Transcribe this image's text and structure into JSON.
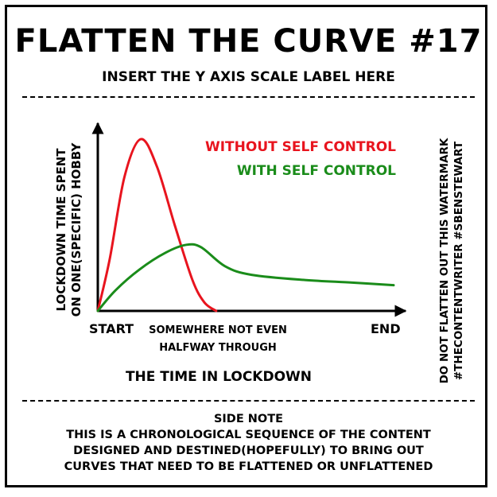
{
  "header": {
    "title": "FLATTEN THE CURVE #17",
    "subtitle": "INSERT THE Y AXIS SCALE LABEL HERE"
  },
  "watermark": {
    "line1": "DO NOT FLATTEN OUT THIS WATERMARK",
    "line2": "#THECONTENTWRITER #SBENSTEWART"
  },
  "side_note": {
    "heading": "SIDE NOTE",
    "lines": [
      "THIS IS A CHRONOLOGICAL SEQUENCE OF THE CONTENT",
      "DESIGNED AND DESTINED(HOPEFULLY) TO BRING OUT",
      "CURVES THAT NEED TO BE FLATTENED OR UNFLATTENED"
    ]
  },
  "chart_data": {
    "type": "line",
    "title": "FLATTEN THE CURVE #17",
    "xlabel": "THE TIME IN LOCKDOWN",
    "ylabel_lines": [
      "LOCKDOWN TIME SPENT",
      "ON ONE(SPECIFIC) HOBBY"
    ],
    "x_ticks": [
      {
        "x": 0.06,
        "lines": [
          "START"
        ]
      },
      {
        "x": 0.4,
        "lines": [
          "SOMEWHERE NOT EVEN",
          "HALFWAY THROUGH"
        ]
      },
      {
        "x": 0.94,
        "lines": [
          "END"
        ]
      }
    ],
    "xlim": [
      0,
      1
    ],
    "ylim": [
      0,
      1
    ],
    "grid": false,
    "legend": "top-right",
    "series": [
      {
        "name": "WITHOUT SELF CONTROL",
        "color": "#e8141e",
        "points": [
          [
            0,
            0
          ],
          [
            0.04,
            0.3
          ],
          [
            0.09,
            0.78
          ],
          [
            0.145,
            1.0
          ],
          [
            0.2,
            0.84
          ],
          [
            0.26,
            0.5
          ],
          [
            0.32,
            0.18
          ],
          [
            0.36,
            0.05
          ],
          [
            0.4,
            0
          ]
        ]
      },
      {
        "name": "WITH SELF CONTROL",
        "color": "#1a8c1a",
        "points": [
          [
            0,
            0
          ],
          [
            0.06,
            0.12
          ],
          [
            0.14,
            0.24
          ],
          [
            0.23,
            0.34
          ],
          [
            0.3,
            0.385
          ],
          [
            0.35,
            0.37
          ],
          [
            0.43,
            0.26
          ],
          [
            0.52,
            0.21
          ],
          [
            0.7,
            0.18
          ],
          [
            0.86,
            0.165
          ],
          [
            1.0,
            0.15
          ]
        ]
      }
    ]
  }
}
